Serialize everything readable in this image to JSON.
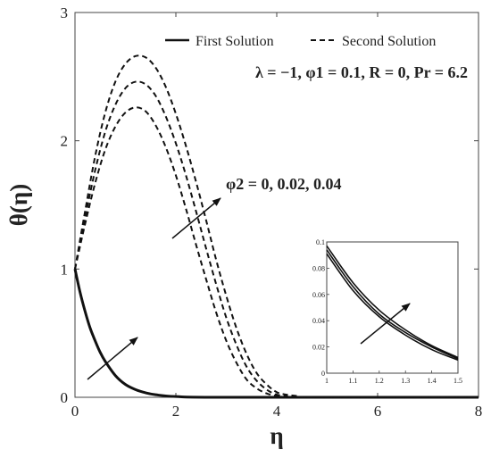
{
  "chart_data": [
    {
      "type": "line",
      "xlabel": "η",
      "ylabel": "θ(η)",
      "xlim": [
        0,
        8
      ],
      "ylim": [
        0,
        3
      ],
      "xticks": [
        0,
        2,
        4,
        6,
        8
      ],
      "yticks": [
        0,
        1,
        2,
        3
      ],
      "grid": false,
      "legend": {
        "placement": "top-right",
        "entries": [
          {
            "label": "First Solution",
            "style": "solid"
          },
          {
            "label": "Second Solution",
            "style": "dashed"
          }
        ]
      },
      "parameters_label": "λ = −1, φ1 = 0.1, R = 0, Pr = 6.2",
      "annotation_phi2": "φ2 = 0, 0.02, 0.04",
      "series": [
        {
          "style": "solid",
          "x": [
            0,
            0.1,
            0.2,
            0.3,
            0.4,
            0.5,
            0.6,
            0.8,
            1.0,
            1.2,
            1.4,
            1.6,
            2.0,
            3.0,
            8.0
          ],
          "y": [
            1.0,
            0.82,
            0.67,
            0.54,
            0.44,
            0.35,
            0.28,
            0.17,
            0.1,
            0.06,
            0.035,
            0.02,
            0.006,
            0.0,
            0.0
          ]
        },
        {
          "style": "dashed",
          "x": [
            0,
            0.2,
            0.4,
            0.6,
            0.8,
            1.0,
            1.2,
            1.4,
            1.6,
            1.8,
            2.0,
            2.2,
            2.4,
            2.6,
            2.8,
            3.0,
            3.2,
            3.4,
            3.6,
            3.8,
            4.0,
            4.2,
            8.0
          ],
          "y": [
            1.0,
            1.35,
            1.67,
            1.93,
            2.11,
            2.22,
            2.26,
            2.23,
            2.12,
            1.95,
            1.73,
            1.47,
            1.19,
            0.92,
            0.66,
            0.44,
            0.27,
            0.14,
            0.07,
            0.03,
            0.01,
            0.0,
            0.0
          ]
        },
        {
          "style": "dashed",
          "x": [
            0,
            0.2,
            0.4,
            0.6,
            0.8,
            1.0,
            1.2,
            1.4,
            1.6,
            1.8,
            2.0,
            2.2,
            2.4,
            2.6,
            2.8,
            3.0,
            3.2,
            3.4,
            3.6,
            3.8,
            4.0,
            4.2,
            4.4,
            8.0
          ],
          "y": [
            1.0,
            1.4,
            1.77,
            2.07,
            2.28,
            2.41,
            2.46,
            2.44,
            2.35,
            2.19,
            1.98,
            1.73,
            1.45,
            1.16,
            0.88,
            0.62,
            0.41,
            0.24,
            0.13,
            0.06,
            0.02,
            0.01,
            0.0,
            0.0
          ]
        },
        {
          "style": "dashed",
          "x": [
            0,
            0.2,
            0.4,
            0.6,
            0.8,
            1.0,
            1.2,
            1.4,
            1.6,
            1.8,
            2.0,
            2.2,
            2.4,
            2.6,
            2.8,
            3.0,
            3.2,
            3.4,
            3.6,
            3.8,
            4.0,
            4.2,
            4.4,
            4.6,
            8.0
          ],
          "y": [
            1.0,
            1.45,
            1.88,
            2.22,
            2.46,
            2.6,
            2.66,
            2.65,
            2.57,
            2.42,
            2.21,
            1.96,
            1.68,
            1.38,
            1.07,
            0.79,
            0.54,
            0.34,
            0.19,
            0.1,
            0.04,
            0.02,
            0.01,
            0.0,
            0.0
          ]
        }
      ]
    },
    {
      "type": "line",
      "xlim": [
        1,
        1.5
      ],
      "ylim": [
        0,
        0.1
      ],
      "xticks": [
        1,
        1.1,
        1.2,
        1.3,
        1.4,
        1.5
      ],
      "yticks": [
        0,
        0.02,
        0.04,
        0.06,
        0.08,
        0.1
      ],
      "xtick_labels": [
        "1",
        "1.1",
        "1.2",
        "1.3",
        "1.4",
        "1.5"
      ],
      "ytick_labels": [
        "0",
        "0.02",
        "0.04",
        "0.06",
        "0.08",
        "0.1"
      ],
      "grid": false,
      "series": [
        {
          "style": "solid",
          "x": [
            1.0,
            1.1,
            1.2,
            1.3,
            1.4,
            1.5
          ],
          "y": [
            0.091,
            0.063,
            0.043,
            0.029,
            0.018,
            0.01
          ]
        },
        {
          "style": "solid",
          "x": [
            1.0,
            1.1,
            1.2,
            1.3,
            1.4,
            1.5
          ],
          "y": [
            0.094,
            0.066,
            0.045,
            0.031,
            0.02,
            0.011
          ]
        },
        {
          "style": "solid",
          "x": [
            1.0,
            1.1,
            1.2,
            1.3,
            1.4,
            1.5
          ],
          "y": [
            0.097,
            0.069,
            0.048,
            0.033,
            0.021,
            0.012
          ]
        }
      ]
    }
  ]
}
